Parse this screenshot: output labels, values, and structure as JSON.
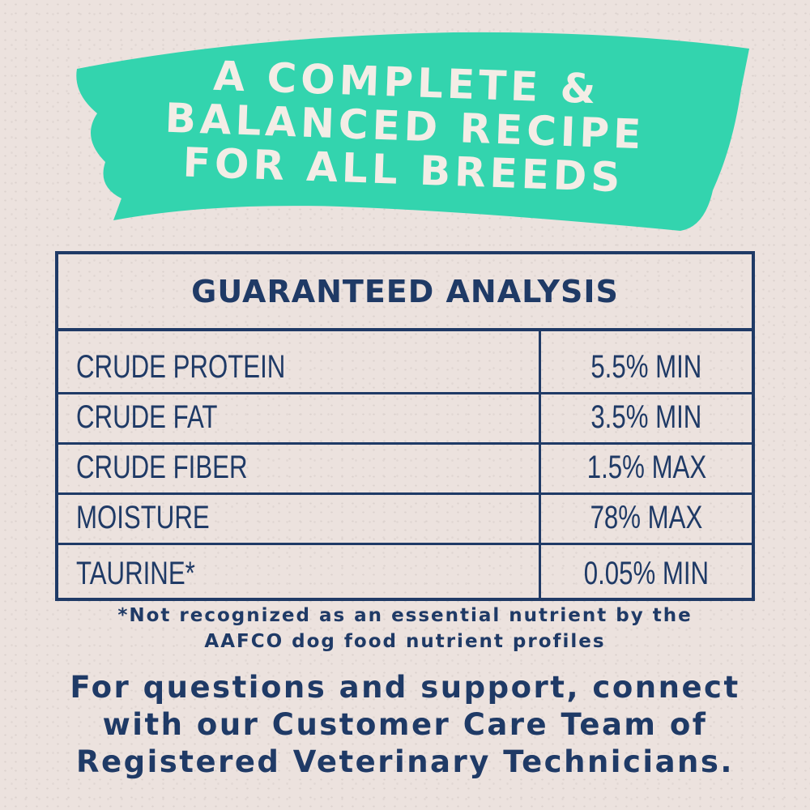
{
  "colors": {
    "background": "#ece2de",
    "navy": "#1f3a66",
    "teal": "#33d4ae",
    "banner_text": "#f3ede6"
  },
  "banner": {
    "lines": [
      "A COMPLETE &",
      "BALANCED RECIPE",
      "FOR ALL BREEDS"
    ]
  },
  "table": {
    "title": "GUARANTEED ANALYSIS",
    "rows": [
      {
        "nutrient": "CRUDE PROTEIN",
        "value": "5.5% MIN"
      },
      {
        "nutrient": "CRUDE FAT",
        "value": "3.5% MIN"
      },
      {
        "nutrient": "CRUDE FIBER",
        "value": "1.5% MAX"
      },
      {
        "nutrient": "MOISTURE",
        "value": "78% MAX"
      },
      {
        "nutrient": "TAURINE*",
        "value": "0.05% MIN"
      }
    ]
  },
  "footnote": {
    "lines": [
      "*Not recognized as an essential nutrient by the",
      "AAFCO dog food nutrient profiles"
    ]
  },
  "support": {
    "lines": [
      "For questions and support, connect",
      "with our Customer Care Team of",
      "Registered Veterinary Technicians."
    ]
  }
}
